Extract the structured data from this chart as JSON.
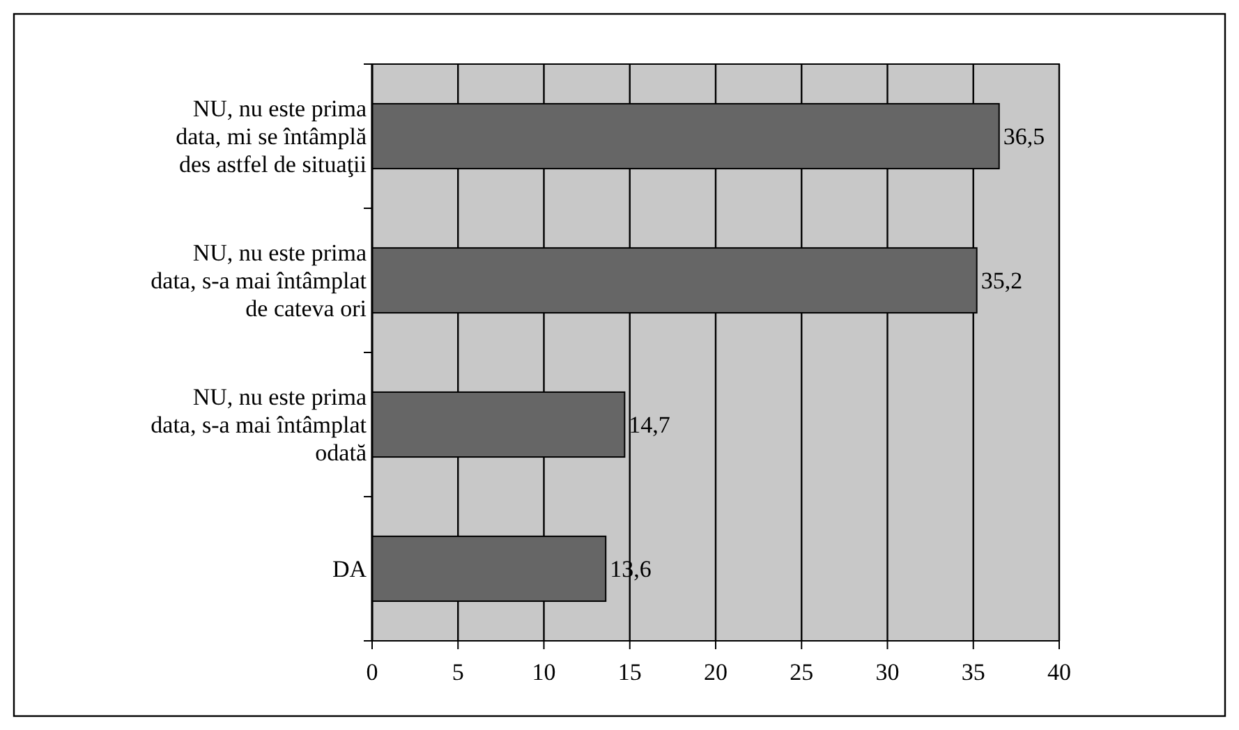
{
  "chart_data": {
    "type": "bar",
    "orientation": "horizontal",
    "categories": [
      "NU, nu este prima\ndata, mi se întâmplă\ndes astfel de situaţii",
      "NU, nu este prima\ndata, s-a mai întâmplat\nde cateva ori",
      "NU, nu este prima\ndata, s-a mai întâmplat\nodată",
      "DA"
    ],
    "values": [
      36.5,
      35.2,
      14.7,
      13.6
    ],
    "value_labels": [
      "36,5",
      "35,2",
      "14,7",
      "13,6"
    ],
    "color": "#666666",
    "xlim": [
      0,
      40
    ],
    "xticks": [
      0,
      5,
      10,
      15,
      20,
      25,
      30,
      35,
      40
    ],
    "grid": "x"
  }
}
